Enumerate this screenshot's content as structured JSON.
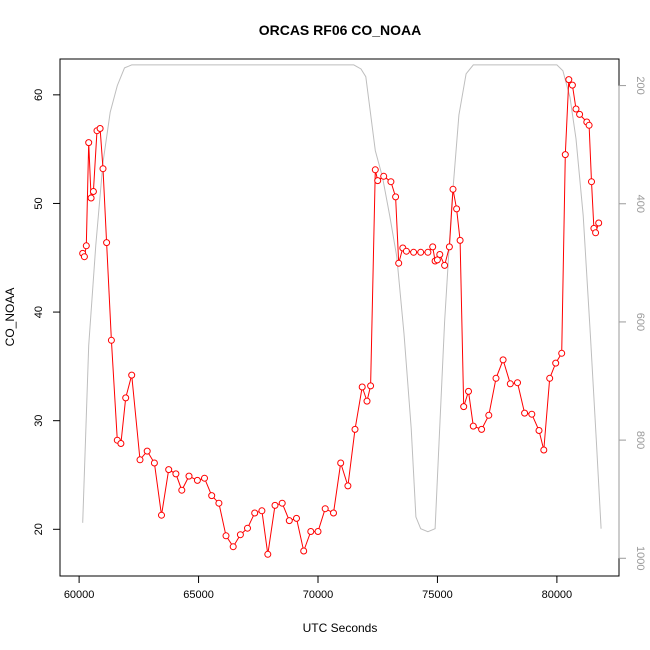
{
  "chart_data": {
    "type": "line",
    "title": "ORCAS RF06 CO_NOAA",
    "xlabel": "UTC Seconds",
    "ylabel": "CO_NOAA",
    "xlim": [
      59200,
      82600
    ],
    "ylim": [
      15.7,
      63.3
    ],
    "y2lim": [
      1030,
      155
    ],
    "y2_reversed": true,
    "x_ticks": [
      60000,
      65000,
      70000,
      75000,
      80000
    ],
    "y_ticks": [
      20,
      30,
      40,
      50,
      60
    ],
    "y2_ticks": [
      200,
      400,
      600,
      800,
      1000
    ],
    "colors": {
      "co": "#ff0000",
      "pressure": "#bebebe",
      "axis": "#000000",
      "right_axis": "#9a9a9a"
    },
    "series": [
      {
        "values": [
          [
            60150,
            45.4
          ],
          [
            60220,
            45.1
          ],
          [
            60300,
            46.1
          ],
          [
            60400,
            55.6
          ],
          [
            60500,
            50.5
          ],
          [
            60600,
            51.1
          ],
          [
            60750,
            56.7
          ],
          [
            60880,
            56.9
          ],
          [
            61000,
            53.2
          ],
          [
            61150,
            46.4
          ],
          [
            61350,
            37.4
          ],
          [
            61600,
            28.2
          ],
          [
            61750,
            27.9
          ],
          [
            61950,
            32.1
          ],
          [
            62200,
            34.2
          ],
          [
            62550,
            26.4
          ],
          [
            62850,
            27.2
          ],
          [
            63150,
            26.1
          ],
          [
            63450,
            21.3
          ],
          [
            63750,
            25.5
          ],
          [
            64050,
            25.1
          ],
          [
            64300,
            23.6
          ],
          [
            64600,
            24.9
          ],
          [
            64950,
            24.5
          ],
          [
            65250,
            24.7
          ],
          [
            65550,
            23.1
          ],
          [
            65850,
            22.4
          ],
          [
            66150,
            19.4
          ],
          [
            66450,
            18.4
          ],
          [
            66750,
            19.5
          ],
          [
            67050,
            20.1
          ],
          [
            67350,
            21.5
          ],
          [
            67650,
            21.7
          ],
          [
            67900,
            17.7
          ],
          [
            68200,
            22.2
          ],
          [
            68500,
            22.4
          ],
          [
            68800,
            20.8
          ],
          [
            69100,
            21.0
          ],
          [
            69400,
            18.0
          ],
          [
            69700,
            19.8
          ],
          [
            70000,
            19.8
          ],
          [
            70300,
            21.9
          ],
          [
            70650,
            21.5
          ],
          [
            70950,
            26.1
          ],
          [
            71250,
            24.0
          ],
          [
            71550,
            29.2
          ],
          [
            71850,
            33.1
          ],
          [
            72050,
            31.8
          ],
          [
            72200,
            33.2
          ],
          [
            72400,
            53.1
          ],
          [
            72500,
            52.1
          ],
          [
            72750,
            52.5
          ],
          [
            73050,
            52.0
          ],
          [
            73250,
            50.6
          ],
          [
            73380,
            44.5
          ],
          [
            73550,
            45.9
          ],
          [
            73700,
            45.6
          ],
          [
            74000,
            45.5
          ],
          [
            74300,
            45.5
          ],
          [
            74600,
            45.5
          ],
          [
            74800,
            46.0
          ],
          [
            74900,
            44.7
          ],
          [
            75000,
            44.8
          ],
          [
            75100,
            45.3
          ],
          [
            75300,
            44.3
          ],
          [
            75500,
            46.0
          ],
          [
            75650,
            51.3
          ],
          [
            75800,
            49.5
          ],
          [
            75950,
            46.6
          ],
          [
            76100,
            31.3
          ],
          [
            76300,
            32.7
          ],
          [
            76500,
            29.5
          ],
          [
            76850,
            29.2
          ],
          [
            77150,
            30.5
          ],
          [
            77450,
            33.9
          ],
          [
            77750,
            35.6
          ],
          [
            78050,
            33.4
          ],
          [
            78350,
            33.5
          ],
          [
            78650,
            30.7
          ],
          [
            78950,
            30.6
          ],
          [
            79250,
            29.1
          ],
          [
            79450,
            27.3
          ],
          [
            79700,
            33.9
          ],
          [
            79950,
            35.3
          ],
          [
            80200,
            36.2
          ],
          [
            80350,
            54.5
          ],
          [
            80500,
            61.4
          ],
          [
            80650,
            60.9
          ],
          [
            80800,
            58.7
          ],
          [
            80950,
            58.2
          ],
          [
            81250,
            57.5
          ],
          [
            81350,
            57.2
          ],
          [
            81450,
            52.0
          ],
          [
            81550,
            47.7
          ],
          [
            81620,
            47.3
          ],
          [
            81750,
            48.2
          ]
        ]
      },
      {
        "axis": "right",
        "values": [
          [
            60150,
            940
          ],
          [
            60400,
            640
          ],
          [
            60700,
            470
          ],
          [
            61000,
            330
          ],
          [
            61300,
            245
          ],
          [
            61600,
            200
          ],
          [
            61900,
            170
          ],
          [
            62200,
            165
          ],
          [
            71500,
            165
          ],
          [
            71800,
            172
          ],
          [
            72000,
            185
          ],
          [
            72400,
            310
          ],
          [
            72700,
            355
          ],
          [
            73000,
            420
          ],
          [
            73300,
            490
          ],
          [
            73600,
            620
          ],
          [
            73900,
            780
          ],
          [
            74100,
            930
          ],
          [
            74300,
            950
          ],
          [
            74600,
            955
          ],
          [
            74900,
            950
          ],
          [
            75050,
            820
          ],
          [
            75300,
            600
          ],
          [
            75600,
            400
          ],
          [
            75900,
            250
          ],
          [
            76200,
            180
          ],
          [
            76500,
            165
          ],
          [
            80000,
            165
          ],
          [
            80250,
            175
          ],
          [
            80550,
            220
          ],
          [
            80800,
            290
          ],
          [
            81100,
            420
          ],
          [
            81400,
            620
          ],
          [
            81650,
            800
          ],
          [
            81850,
            950
          ]
        ]
      }
    ]
  }
}
